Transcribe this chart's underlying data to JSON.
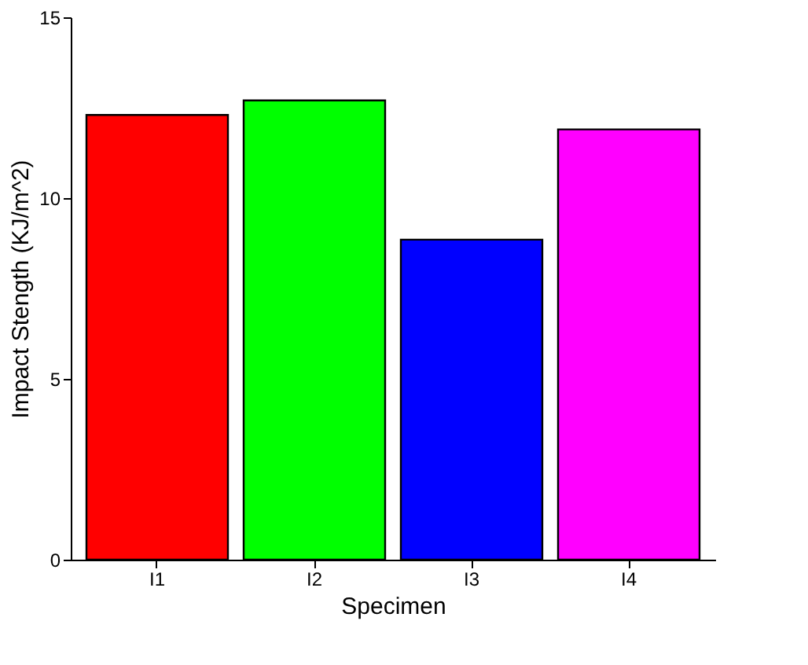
{
  "chart_data": {
    "type": "bar",
    "xlabel": "Specimen",
    "ylabel": "Impact Stength (KJ/m^2)",
    "categories": [
      "I1",
      "I2",
      "I3",
      "I4"
    ],
    "values": [
      12.3,
      12.7,
      8.85,
      11.9
    ],
    "colors": [
      "#ff0000",
      "#00ff00",
      "#0000ff",
      "#ff00ff"
    ],
    "ylim": [
      0,
      15
    ],
    "yticks": [
      0,
      5,
      10,
      15
    ],
    "grid": false
  }
}
